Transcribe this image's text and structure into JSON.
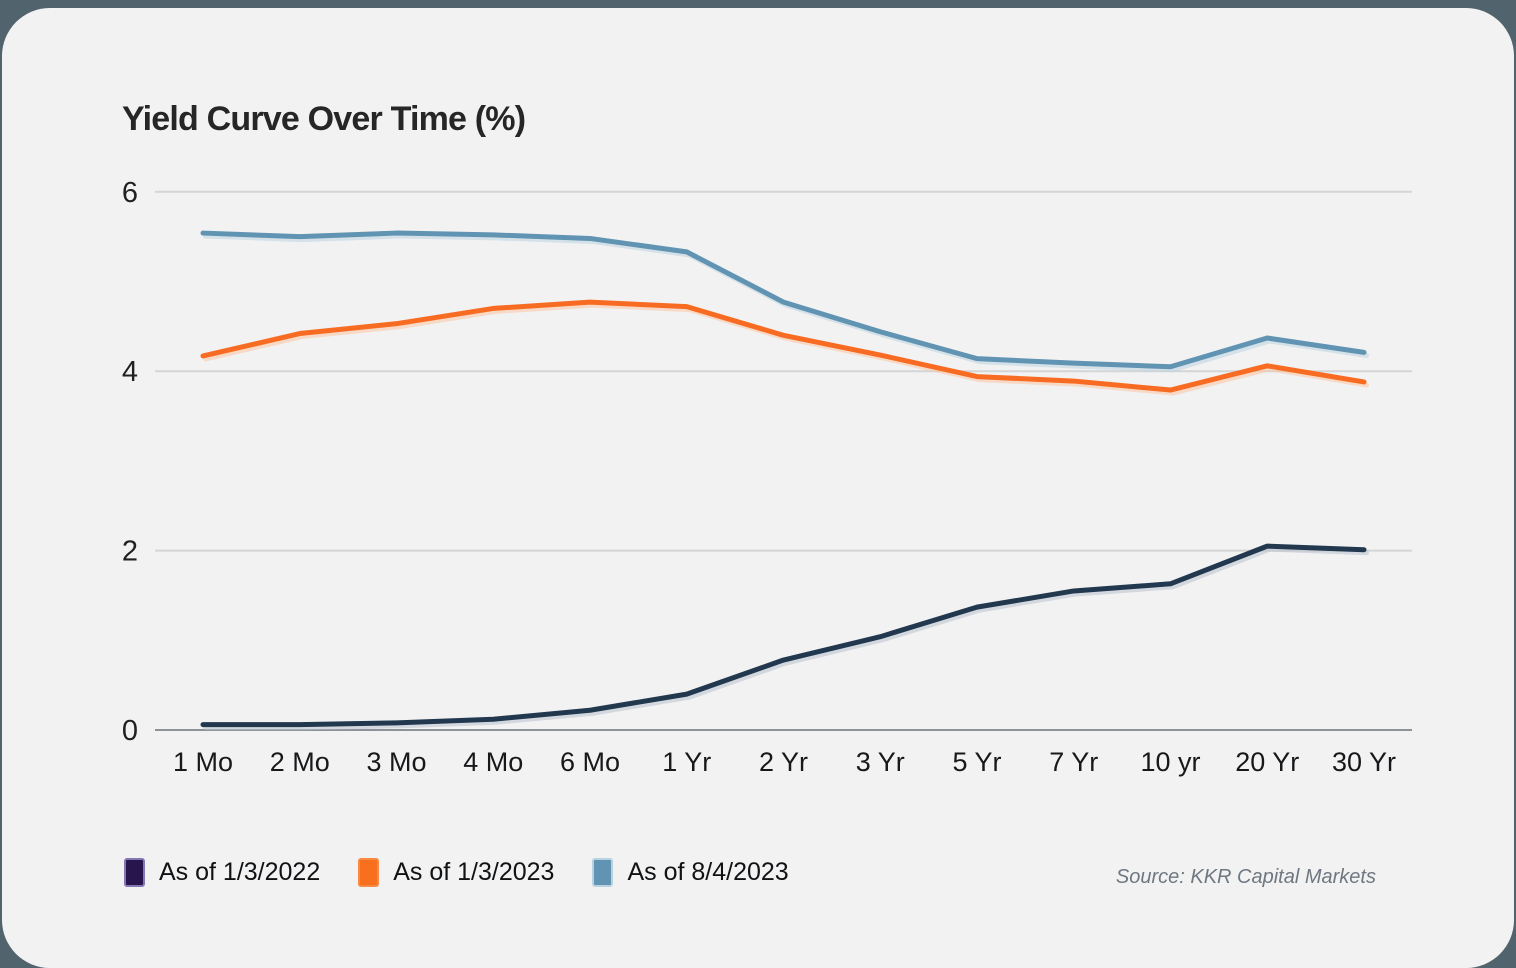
{
  "page": {
    "background_color": "#51646d",
    "card_background_color": "#f2f2f3",
    "gridline_color": "#d4d5d6",
    "axis_line_color": "#8d9298"
  },
  "chart_data": {
    "type": "line",
    "title": "Yield Curve Over Time (%)",
    "source": "Source: KKR Capital Markets",
    "categories": [
      "1 Mo",
      "2 Mo",
      "3 Mo",
      "4 Mo",
      "6 Mo",
      "1 Yr",
      "2 Yr",
      "3 Yr",
      "5 Yr",
      "7 Yr",
      "10 yr",
      "20 Yr",
      "30 Yr"
    ],
    "xlabel": "",
    "ylabel": "",
    "y_ticks": [
      0,
      2,
      4,
      6
    ],
    "ylim": [
      0,
      6
    ],
    "grid": "horizontal",
    "legend_position": "bottom-left",
    "series": [
      {
        "name": "As of 1/3/2022",
        "color": "#22384f",
        "swatch_color": "#29154e",
        "swatch_border": "#8578b2",
        "shadow_color": "#b9c3cd",
        "values": [
          0.06,
          0.06,
          0.08,
          0.12,
          0.22,
          0.4,
          0.78,
          1.04,
          1.37,
          1.55,
          1.63,
          2.05,
          2.01
        ]
      },
      {
        "name": "As of 1/3/2023",
        "color": "#f76c22",
        "swatch_color": "#f86f1d",
        "swatch_border": "#f98a44",
        "shadow_color": "#fbc4a0",
        "values": [
          4.17,
          4.42,
          4.53,
          4.7,
          4.77,
          4.72,
          4.4,
          4.18,
          3.94,
          3.89,
          3.79,
          4.06,
          3.88
        ]
      },
      {
        "name": "As of 8/4/2023",
        "color": "#6094b2",
        "swatch_color": "#6094b2",
        "swatch_border": "#b9d2e0",
        "shadow_color": "#bcd3e0",
        "values": [
          5.54,
          5.5,
          5.54,
          5.52,
          5.48,
          5.33,
          4.77,
          4.44,
          4.14,
          4.09,
          4.05,
          4.37,
          4.21
        ]
      }
    ]
  }
}
